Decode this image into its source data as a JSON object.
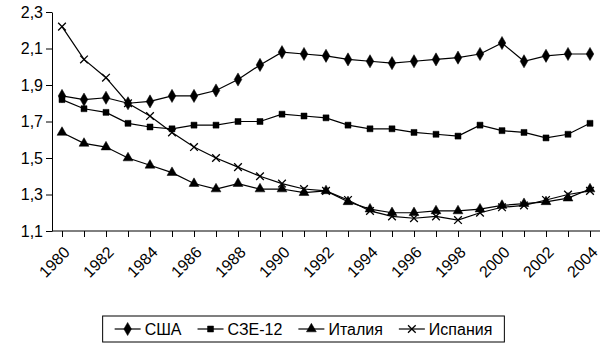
{
  "chart_data": {
    "type": "line",
    "categories": [
      "1980",
      null,
      "1982",
      null,
      "1984",
      null,
      "1986",
      null,
      "1988",
      null,
      "1990",
      null,
      "1992",
      null,
      "1994",
      null,
      "1996",
      null,
      "1998",
      null,
      "2000",
      null,
      "2002",
      null,
      "2004"
    ],
    "ylim": [
      1.1,
      2.3
    ],
    "yticks": [
      {
        "value": 1.1,
        "label": "1,1"
      },
      {
        "value": 1.3,
        "label": "1,3"
      },
      {
        "value": 1.5,
        "label": "1,5"
      },
      {
        "value": 1.7,
        "label": "1,7"
      },
      {
        "value": 1.9,
        "label": "1,9"
      },
      {
        "value": 2.1,
        "label": "2,1"
      },
      {
        "value": 2.3,
        "label": "2,3"
      }
    ],
    "grid": false,
    "legend": "bottom",
    "series": [
      {
        "name": "США",
        "color": "#000000",
        "marker": "diamond",
        "line_style": "solid",
        "values": [
          1.84,
          1.82,
          1.83,
          1.8,
          1.81,
          1.84,
          1.84,
          1.87,
          1.93,
          2.01,
          2.08,
          2.07,
          2.06,
          2.04,
          2.03,
          2.02,
          2.03,
          2.04,
          2.05,
          2.07,
          2.13,
          2.03,
          2.06,
          2.07,
          2.07
        ]
      },
      {
        "name": "СЗЕ-12",
        "color": "#000000",
        "marker": "square",
        "line_style": "solid",
        "values": [
          1.82,
          1.77,
          1.75,
          1.69,
          1.67,
          1.66,
          1.68,
          1.68,
          1.7,
          1.7,
          1.74,
          1.73,
          1.72,
          1.68,
          1.66,
          1.66,
          1.64,
          1.63,
          1.62,
          1.68,
          1.65,
          1.64,
          1.61,
          1.63,
          1.69
        ]
      },
      {
        "name": "Италия",
        "color": "#000000",
        "marker": "triangle",
        "line_style": "solid",
        "values": [
          1.64,
          1.58,
          1.56,
          1.5,
          1.46,
          1.42,
          1.36,
          1.33,
          1.36,
          1.33,
          1.33,
          1.31,
          1.32,
          1.26,
          1.22,
          1.2,
          1.2,
          1.21,
          1.21,
          1.22,
          1.24,
          1.25,
          1.26,
          1.28,
          1.33
        ]
      },
      {
        "name": "Испания",
        "color": "#000000",
        "marker": "x",
        "line_style": "solid",
        "values": [
          2.22,
          2.04,
          1.94,
          1.8,
          1.73,
          1.64,
          1.56,
          1.5,
          1.45,
          1.4,
          1.36,
          1.33,
          1.32,
          1.27,
          1.21,
          1.18,
          1.17,
          1.18,
          1.16,
          1.2,
          1.23,
          1.24,
          1.27,
          1.3,
          1.32
        ]
      }
    ]
  }
}
